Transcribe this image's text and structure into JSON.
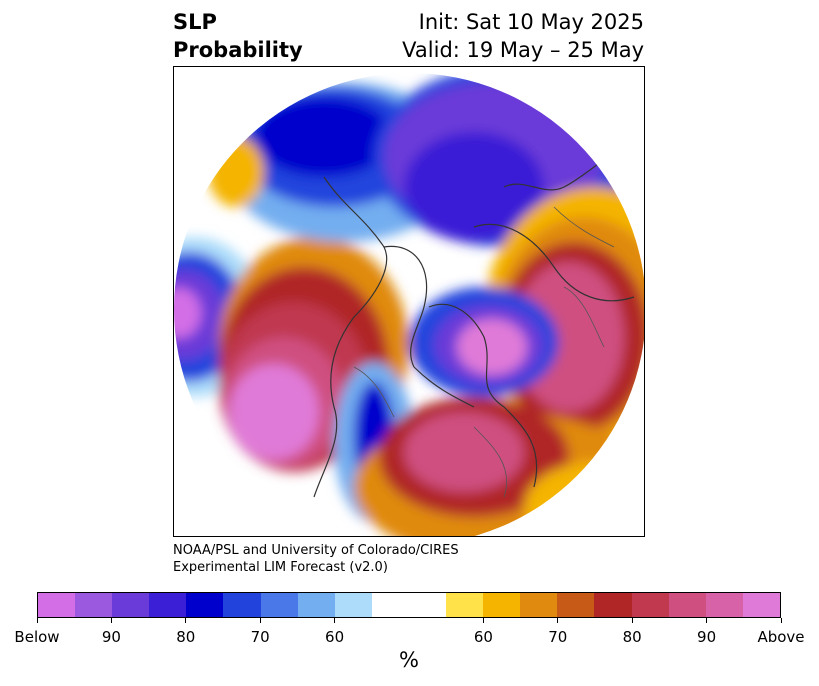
{
  "title": {
    "left_line1": "SLP",
    "left_line2": "Probability",
    "right_line1": "Init: Sat 10 May 2025",
    "right_line2": "Valid: 19 May – 25 May"
  },
  "credit": {
    "line1": "NOAA/PSL and University of Colorado/CIRES",
    "line2": "Experimental LIM Forecast (v2.0)"
  },
  "colorbar": {
    "unit_label": "%",
    "tick_labels": [
      "Below",
      "90",
      "80",
      "70",
      "60",
      "60",
      "70",
      "80",
      "90",
      "Above"
    ],
    "colors": [
      "#d36ee6",
      "#9b59e0",
      "#6a3bd8",
      "#3a1fd6",
      "#0000cc",
      "#2244dd",
      "#4a78e8",
      "#73aef0",
      "#acdcfa",
      "#ffffff",
      "#ffffff",
      "#ffe14a",
      "#f4b400",
      "#e08a10",
      "#c85a18",
      "#b02626",
      "#c0394f",
      "#cf5080",
      "#d862a8",
      "#e07ad8"
    ]
  },
  "map": {
    "projection": "north-polar-stereographic",
    "features": [
      "coastlines",
      "country-borders",
      "state-borders"
    ]
  }
}
